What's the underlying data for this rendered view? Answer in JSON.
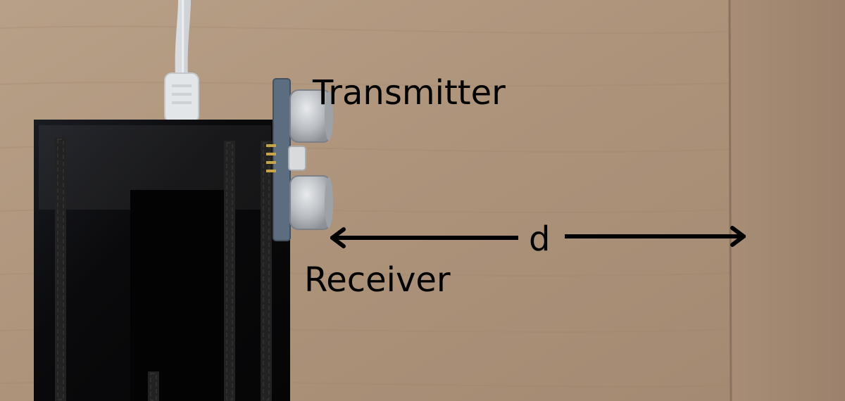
{
  "labels": {
    "transmitter": "Transmitter",
    "receiver": "Receiver",
    "distance": "d"
  },
  "colors": {
    "wood_left": "#b49a80",
    "wood_right": "#a88b74",
    "board": "#0b0b0d",
    "sensor_metal": "#c9ccd0",
    "pcb": "#5a6b7d",
    "cable": "#e9ecee",
    "arrow": "#000000"
  }
}
